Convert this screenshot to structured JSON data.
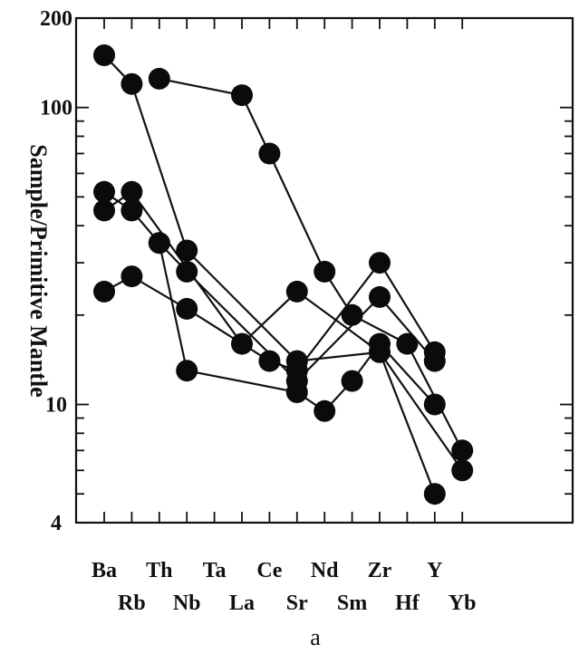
{
  "chart_data": {
    "type": "line",
    "ylabel": "Sample/Primitive Mantle",
    "yscale": "log",
    "ylim": [
      4,
      200
    ],
    "yticks": [
      {
        "value": 200,
        "label": "200"
      },
      {
        "value": 100,
        "label": "100"
      },
      {
        "value": 10,
        "label": "10"
      },
      {
        "value": 4,
        "label": "4"
      }
    ],
    "categories": [
      "Ba",
      "Rb",
      "Th",
      "Nb",
      "Ta",
      "La",
      "Ce",
      "Sr",
      "Nd",
      "Sm",
      "Zr",
      "Hf",
      "Y",
      "Yb"
    ],
    "grid": false,
    "caption": "a",
    "series": [
      {
        "values": {
          "Ba": 150,
          "Rb": 120,
          "Th": null,
          "Nb": 33,
          "La": null,
          "Ce": null,
          "Sr": 14,
          "Nd": null,
          "Sm": null,
          "Zr": 15,
          "Hf": null,
          "Y": 5,
          "Yb": null
        }
      },
      {
        "values": {
          "Ba": null,
          "Rb": null,
          "Th": 125,
          "Nb": null,
          "La": 110,
          "Ce": 70,
          "Sr": null,
          "Nd": 28,
          "Sm": 20,
          "Zr": null,
          "Hf": 16,
          "Y": null,
          "Yb": 7
        }
      },
      {
        "values": {
          "Ba": 52,
          "Rb": 45,
          "Th": 35,
          "Nb": 28,
          "La": null,
          "Ce": null,
          "Sr": 12,
          "Nd": null,
          "Sm": null,
          "Zr": 23,
          "Hf": null,
          "Y": 14,
          "Yb": null
        }
      },
      {
        "values": {
          "Ba": 45,
          "Rb": 52,
          "Th": null,
          "Nb": null,
          "La": 16,
          "Ce": null,
          "Sr": 24,
          "Nd": null,
          "Sm": null,
          "Zr": 15,
          "Hf": null,
          "Y": null,
          "Yb": 6
        }
      },
      {
        "values": {
          "Ba": 24,
          "Rb": 27,
          "Th": null,
          "Nb": 21,
          "La": null,
          "Ce": 14,
          "Sr": 13,
          "Nd": null,
          "Sm": null,
          "Zr": 30,
          "Hf": null,
          "Y": 15,
          "Yb": null
        }
      },
      {
        "values": {
          "Ba": null,
          "Rb": null,
          "Th": 35,
          "Nb": 13,
          "La": null,
          "Ce": null,
          "Sr": 11,
          "Nd": 9.5,
          "Sm": 12,
          "Zr": 16,
          "Hf": null,
          "Y": 10,
          "Yb": null
        }
      }
    ]
  }
}
